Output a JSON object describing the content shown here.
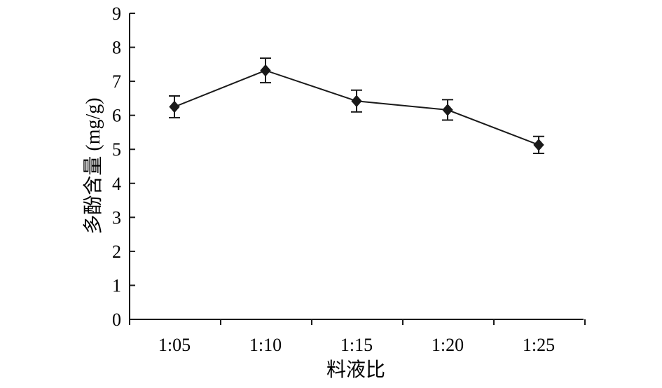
{
  "chart_data": {
    "type": "line",
    "xlabel": "料液比",
    "ylabel": "多酚含量 (mg/g)",
    "categories": [
      "1:05",
      "1:10",
      "1:15",
      "1:20",
      "1:25"
    ],
    "ylim": [
      0,
      9
    ],
    "yticks": [
      "0",
      "1",
      "2",
      "3",
      "4",
      "5",
      "6",
      "7",
      "8",
      "9"
    ],
    "grid": false,
    "series": [
      {
        "values": [
          6.25,
          7.32,
          6.42,
          6.16,
          5.13
        ],
        "errors": [
          0.32,
          0.36,
          0.32,
          0.3,
          0.25
        ],
        "marker": "diamond",
        "color": "#1a1a1a"
      }
    ]
  }
}
